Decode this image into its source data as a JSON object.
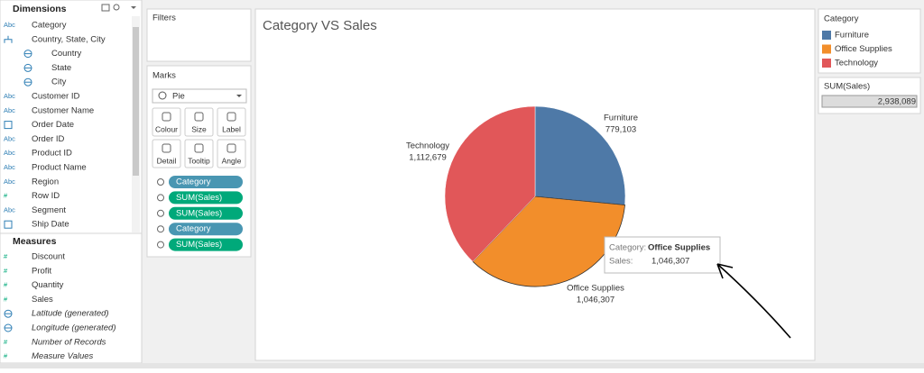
{
  "data_pane": {
    "dimensions": {
      "title": "Dimensions",
      "items": [
        {
          "icon": "Abc",
          "label": "Category"
        },
        {
          "icon": "hierarchy",
          "label": "Country, State, City"
        },
        {
          "icon": "globe",
          "label": "Country",
          "indent": true
        },
        {
          "icon": "globe",
          "label": "State",
          "indent": true
        },
        {
          "icon": "globe",
          "label": "City",
          "indent": true
        },
        {
          "icon": "Abc",
          "label": "Customer ID"
        },
        {
          "icon": "Abc",
          "label": "Customer Name"
        },
        {
          "icon": "calendar",
          "label": "Order Date"
        },
        {
          "icon": "Abc",
          "label": "Order ID"
        },
        {
          "icon": "Abc",
          "label": "Product ID"
        },
        {
          "icon": "Abc",
          "label": "Product Name"
        },
        {
          "icon": "Abc",
          "label": "Region"
        },
        {
          "icon": "#",
          "label": "Row ID"
        },
        {
          "icon": "Abc",
          "label": "Segment"
        },
        {
          "icon": "calendar",
          "label": "Ship Date"
        }
      ]
    },
    "measures": {
      "title": "Measures",
      "items": [
        {
          "icon": "#",
          "label": "Discount"
        },
        {
          "icon": "#",
          "label": "Profit"
        },
        {
          "icon": "#",
          "label": "Quantity"
        },
        {
          "icon": "#",
          "label": "Sales"
        },
        {
          "icon": "globe",
          "label": "Latitude (generated)",
          "italic": true
        },
        {
          "icon": "globe",
          "label": "Longitude (generated)",
          "italic": true
        },
        {
          "icon": "#",
          "label": "Number of Records",
          "italic": true
        },
        {
          "icon": "#",
          "label": "Measure Values",
          "italic": true
        }
      ]
    }
  },
  "filters": {
    "title": "Filters"
  },
  "marks": {
    "title": "Marks",
    "mark_type": "Pie",
    "buttons": [
      "Colour",
      "Size",
      "Label",
      "Detail",
      "Tooltip",
      "Angle"
    ],
    "pills": [
      {
        "label": "Category",
        "role": "color",
        "color": "#4996b2"
      },
      {
        "label": "SUM(Sales)",
        "role": "angle",
        "color": "#00a97a"
      },
      {
        "label": "SUM(Sales)",
        "role": "size",
        "color": "#00a97a"
      },
      {
        "label": "Category",
        "role": "label",
        "color": "#4996b2"
      },
      {
        "label": "SUM(Sales)",
        "role": "label",
        "color": "#00a97a"
      }
    ]
  },
  "chart_data": {
    "type": "pie",
    "title": "Category VS Sales",
    "categories": [
      "Furniture",
      "Office Supplies",
      "Technology"
    ],
    "values": [
      779103,
      1046307,
      1112679
    ],
    "value_labels": [
      "779,103",
      "1,046,307",
      "1,112,679"
    ],
    "colors": [
      "#4e79a7",
      "#f28e2b",
      "#e15759"
    ],
    "legend_title": "Category"
  },
  "size_legend": {
    "title": "SUM(Sales)",
    "max_label": "2,938,089"
  },
  "tooltip": {
    "category_key": "Category:",
    "category_value": "Office Supplies",
    "sales_key": "Sales:",
    "sales_value": "1,046,307"
  }
}
